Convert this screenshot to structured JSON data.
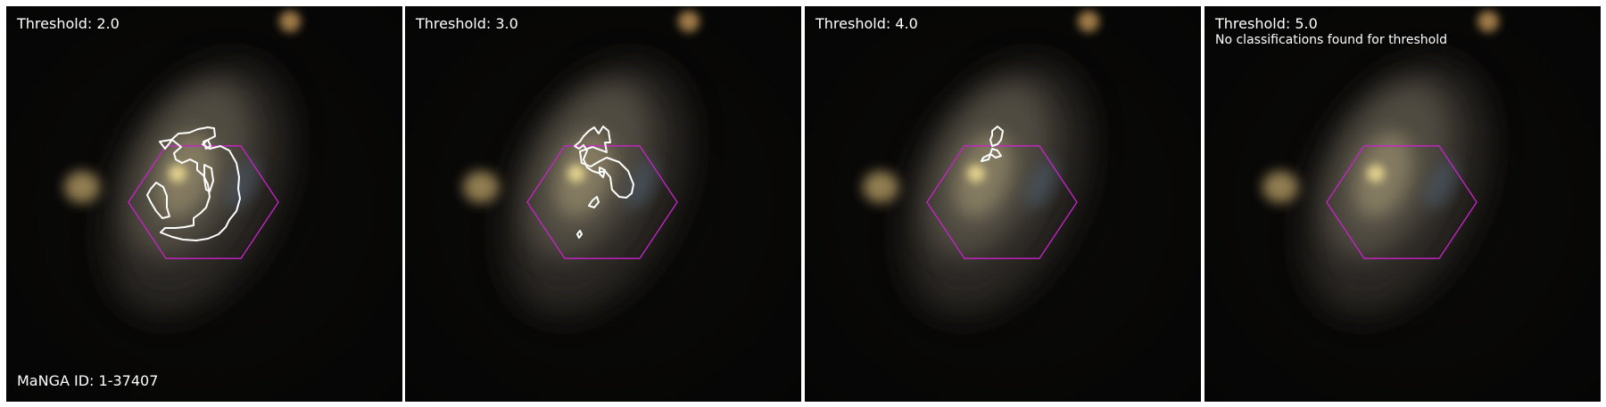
{
  "figure": {
    "manga_id_label": "MaNGA ID: 1-37407",
    "colors": {
      "hexagon": "#cc22cc",
      "contour": "#ffffff",
      "background": "#050505"
    },
    "panels": [
      {
        "threshold_label": "Threshold: 2.0",
        "note": "",
        "contour_set": 0
      },
      {
        "threshold_label": "Threshold: 3.0",
        "note": "",
        "contour_set": 1
      },
      {
        "threshold_label": "Threshold: 4.0",
        "note": "",
        "contour_set": 2
      },
      {
        "threshold_label": "Threshold: 5.0",
        "note": "No classifications found for threshold",
        "contour_set": 3
      }
    ]
  }
}
